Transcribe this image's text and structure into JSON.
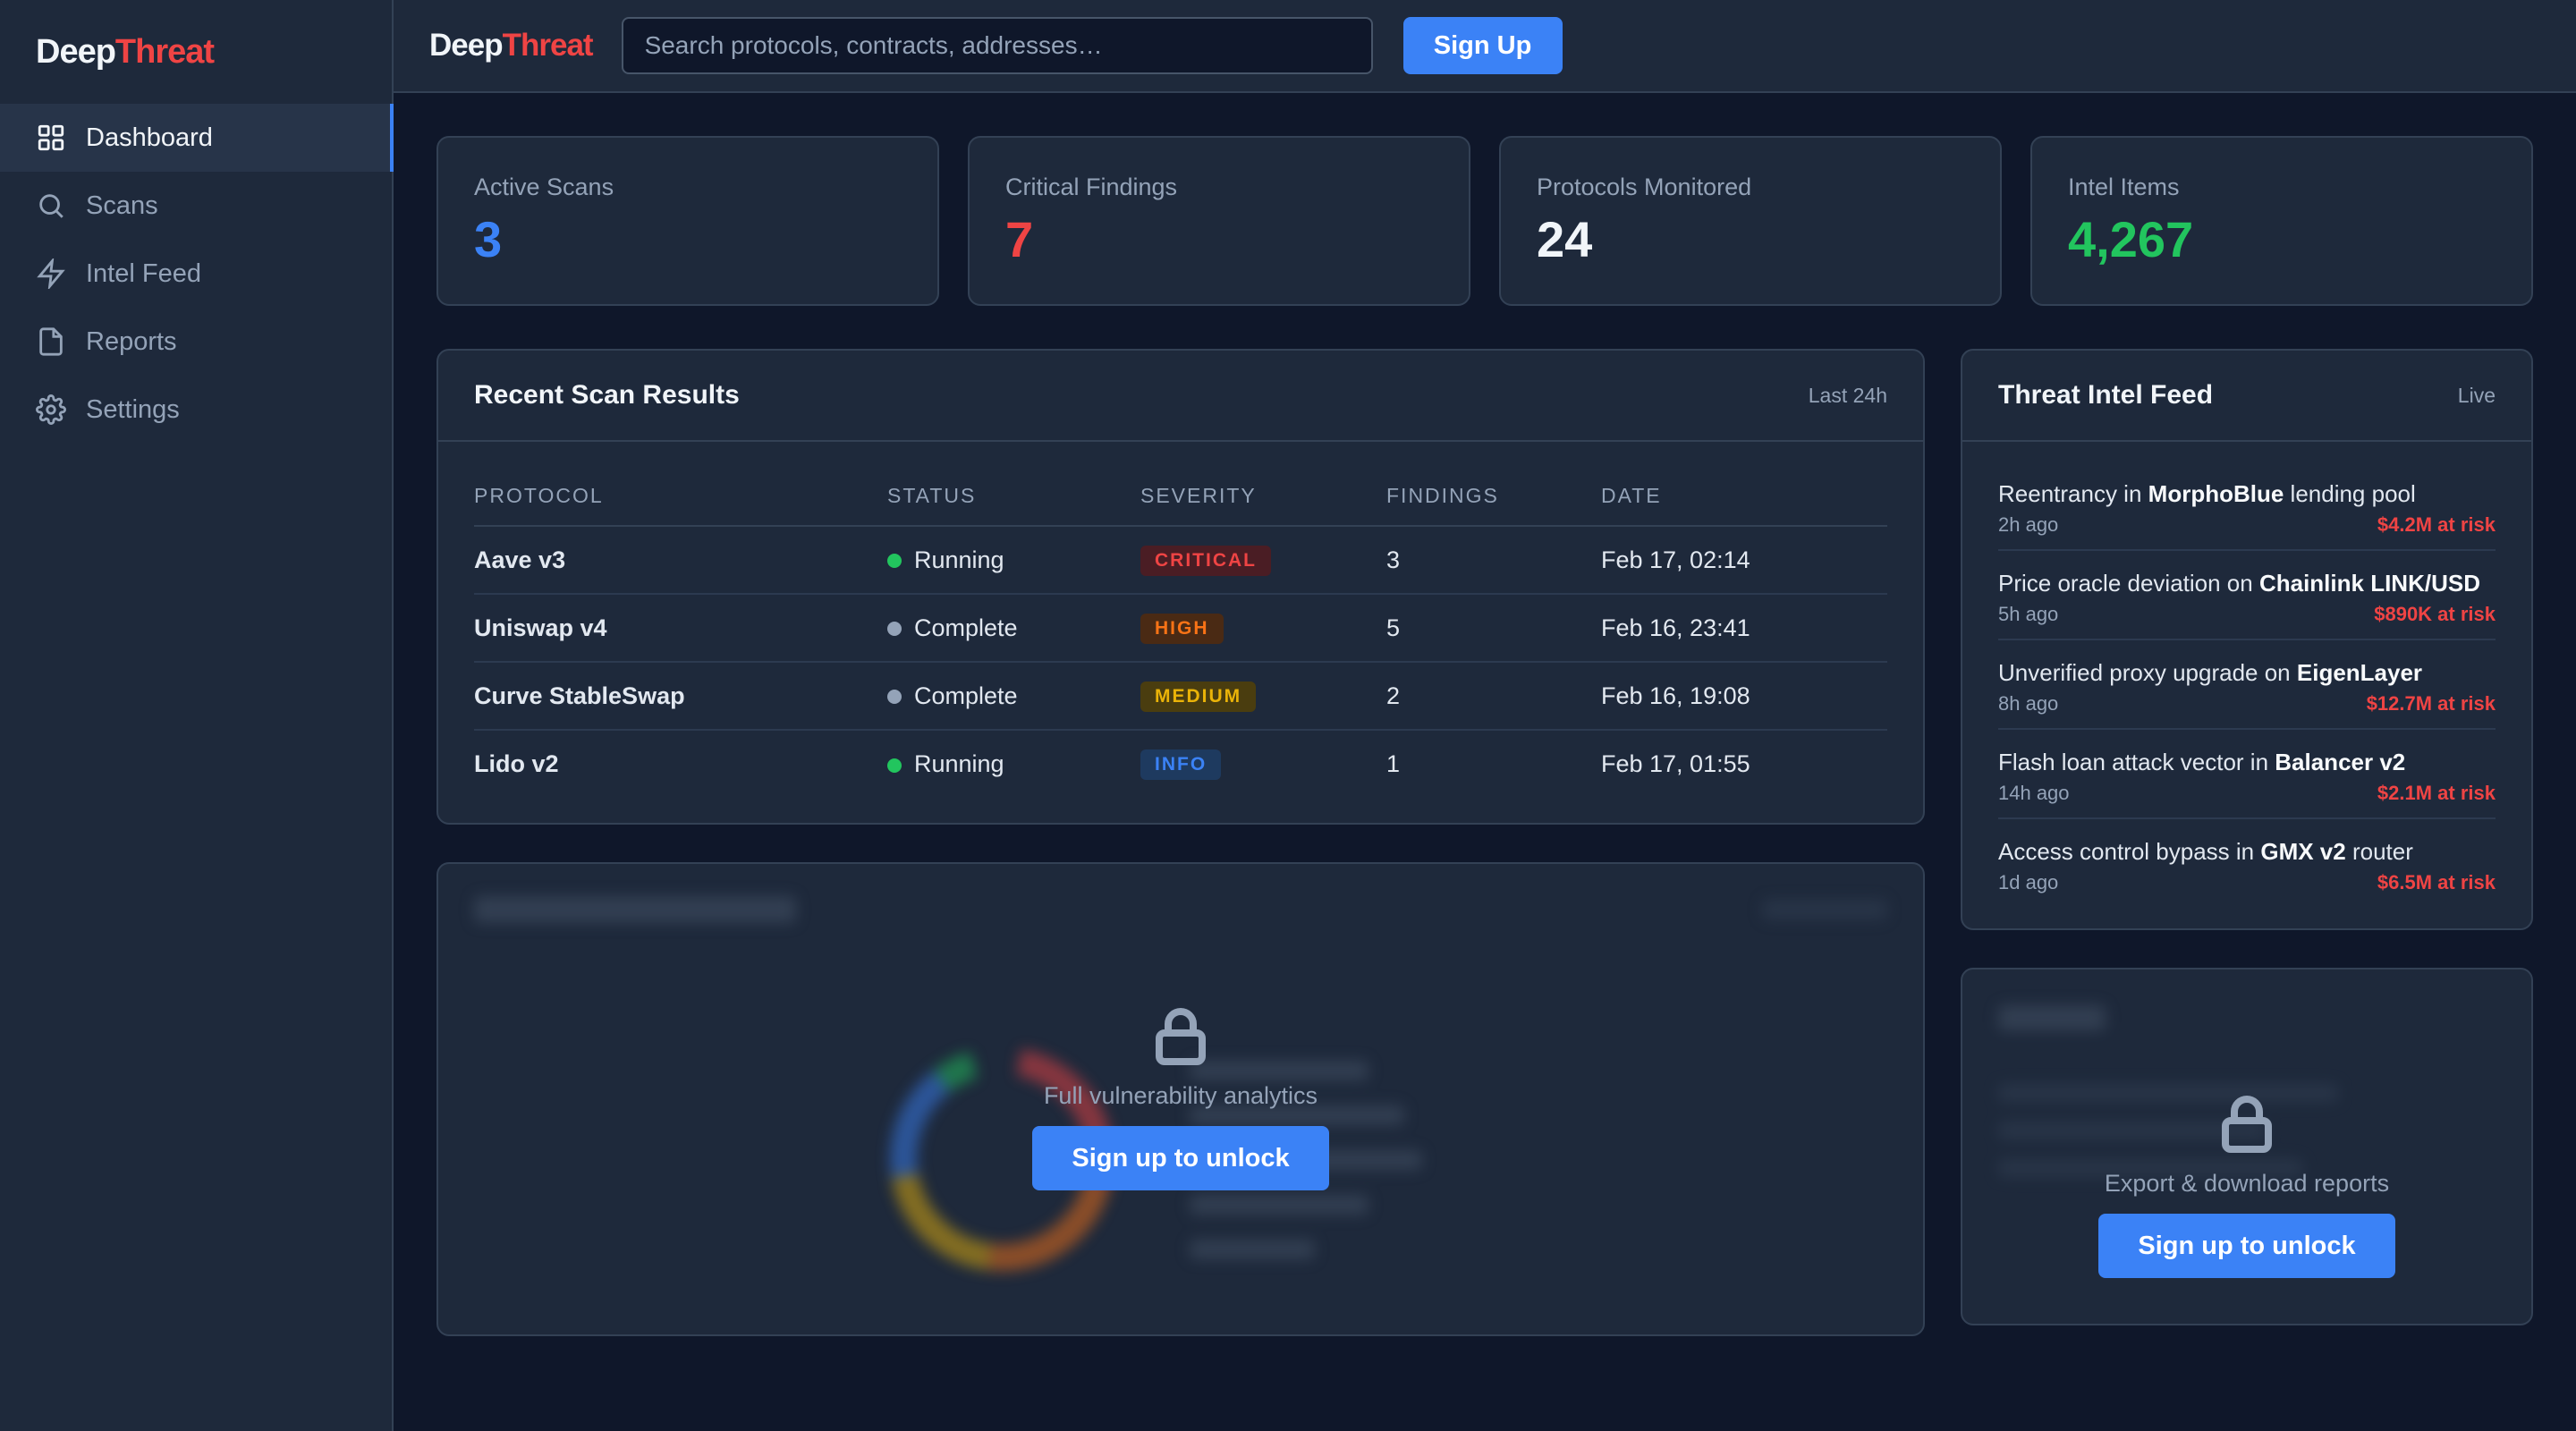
{
  "brand": {
    "deep": "Deep",
    "threat": "Threat"
  },
  "sidebar": {
    "items": [
      {
        "label": "Dashboard",
        "icon": "grid-icon",
        "active": true
      },
      {
        "label": "Scans",
        "icon": "search-icon",
        "active": false
      },
      {
        "label": "Intel Feed",
        "icon": "lightning-icon",
        "active": false
      },
      {
        "label": "Reports",
        "icon": "document-icon",
        "active": false
      },
      {
        "label": "Settings",
        "icon": "gear-icon",
        "active": false
      }
    ]
  },
  "topbar": {
    "search_placeholder": "Search protocols, contracts, addresses…",
    "signup_label": "Sign Up"
  },
  "stats": [
    {
      "label": "Active Scans",
      "value": "3",
      "color": "#3b82f6"
    },
    {
      "label": "Critical Findings",
      "value": "7",
      "color": "#ef4444"
    },
    {
      "label": "Protocols Monitored",
      "value": "24",
      "color": "#f1f5f9"
    },
    {
      "label": "Intel Items",
      "value": "4,267",
      "color": "#22c55e"
    }
  ],
  "scans": {
    "title": "Recent Scan Results",
    "meta": "Last 24h",
    "columns": [
      "Protocol",
      "Status",
      "Severity",
      "Findings",
      "Date"
    ],
    "rows": [
      {
        "protocol": "Aave v3",
        "status": "Running",
        "status_color": "#22c55e",
        "severity": "CRITICAL",
        "findings": "3",
        "date": "Feb 17, 02:14"
      },
      {
        "protocol": "Uniswap v4",
        "status": "Complete",
        "status_color": "#94a3b8",
        "severity": "HIGH",
        "findings": "5",
        "date": "Feb 16, 23:41"
      },
      {
        "protocol": "Curve StableSwap",
        "status": "Complete",
        "status_color": "#94a3b8",
        "severity": "MEDIUM",
        "findings": "2",
        "date": "Feb 16, 19:08"
      },
      {
        "protocol": "Lido v2",
        "status": "Running",
        "status_color": "#22c55e",
        "severity": "INFO",
        "findings": "1",
        "date": "Feb 17, 01:55"
      }
    ],
    "severity_styles": {
      "CRITICAL": {
        "bg": "#4a1d24",
        "fg": "#ef4444"
      },
      "HIGH": {
        "bg": "#4a2a14",
        "fg": "#f97316"
      },
      "MEDIUM": {
        "bg": "#4a3d0f",
        "fg": "#eab308"
      },
      "INFO": {
        "bg": "#1e3a5f",
        "fg": "#3b82f6"
      }
    }
  },
  "vuln": {
    "lock_text": "Full vulnerability analytics",
    "unlock_label": "Sign up to unlock"
  },
  "feed": {
    "title": "Threat Intel Feed",
    "meta": "Live",
    "items": [
      {
        "pre": "Reentrancy in ",
        "bold": "MorphoBlue",
        "post": " lending pool",
        "time": "2h ago",
        "risk": "$4.2M at risk"
      },
      {
        "pre": "Price oracle deviation on ",
        "bold": "Chainlink LINK/USD",
        "post": "",
        "time": "5h ago",
        "risk": "$890K at risk"
      },
      {
        "pre": "Unverified proxy upgrade on ",
        "bold": "EigenLayer",
        "post": "",
        "time": "8h ago",
        "risk": "$12.7M at risk"
      },
      {
        "pre": "Flash loan attack vector in ",
        "bold": "Balancer v2",
        "post": "",
        "time": "14h ago",
        "risk": "$2.1M at risk"
      },
      {
        "pre": "Access control bypass in ",
        "bold": "GMX v2",
        "post": " router",
        "time": "1d ago",
        "risk": "$6.5M at risk"
      }
    ]
  },
  "reports": {
    "lock_text": "Export & download reports",
    "unlock_label": "Sign up to unlock"
  },
  "colors": {
    "accent": "#3b82f6",
    "danger": "#ef4444",
    "success": "#22c55e"
  }
}
